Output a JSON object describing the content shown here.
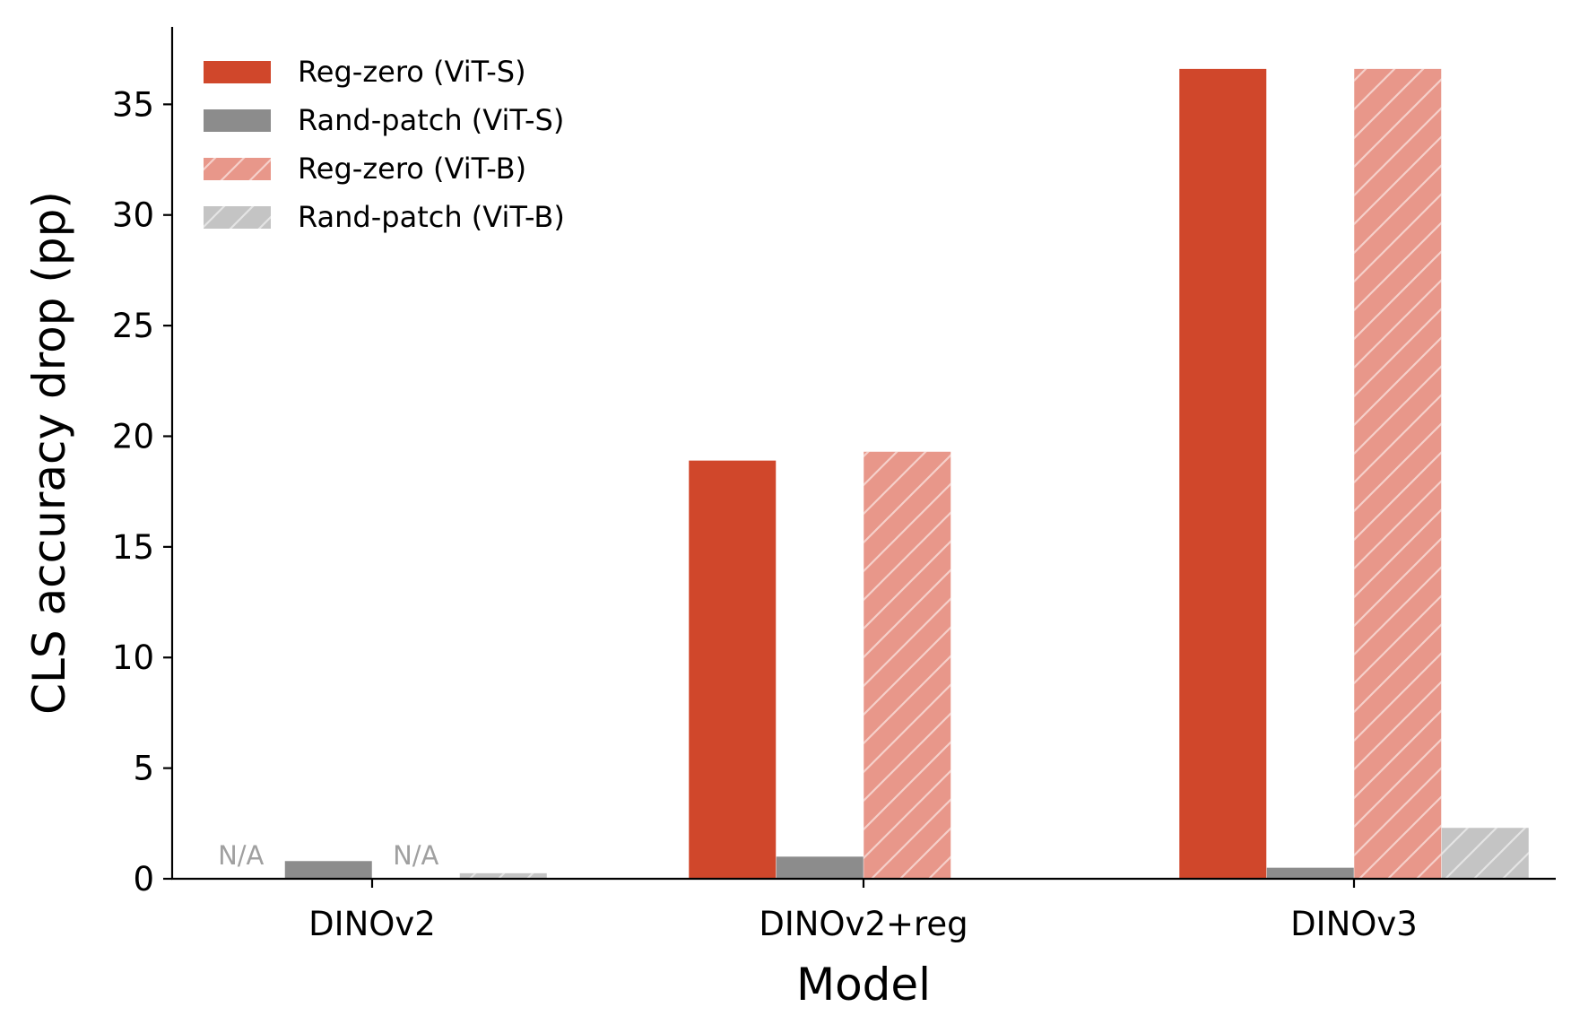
{
  "chart_data": {
    "type": "bar",
    "title": "",
    "xlabel": "Model",
    "ylabel": "CLS accuracy drop (pp)",
    "categories": [
      "DINOv2",
      "DINOv2+reg",
      "DINOv3"
    ],
    "ylim": [
      0,
      38.5
    ],
    "yticks": [
      0,
      5,
      10,
      15,
      20,
      25,
      30,
      35
    ],
    "ytick_labels": [
      "0",
      "5",
      "10",
      "15",
      "20",
      "25",
      "30",
      "35"
    ],
    "grid": false,
    "legend_position": "top-left",
    "series": [
      {
        "name": "Reg-zero (ViT-S)",
        "values": [
          null,
          18.9,
          36.6
        ],
        "color": "#d0472b",
        "hatch": false
      },
      {
        "name": "Rand-patch (ViT-S)",
        "values": [
          0.8,
          1.0,
          0.5
        ],
        "color": "#8c8c8c",
        "hatch": false
      },
      {
        "name": "Reg-zero (ViT-B)",
        "values": [
          null,
          19.3,
          36.6
        ],
        "color": "#e8978a",
        "hatch": true
      },
      {
        "name": "Rand-patch (ViT-B)",
        "values": [
          0.25,
          null,
          2.3
        ],
        "color": "#c4c4c4",
        "hatch": true
      }
    ],
    "annotations": [
      {
        "text": "N/A",
        "category": "DINOv2",
        "series": "Reg-zero (ViT-S)"
      },
      {
        "text": "N/A",
        "category": "DINOv2",
        "series": "Reg-zero (ViT-B)"
      }
    ]
  }
}
